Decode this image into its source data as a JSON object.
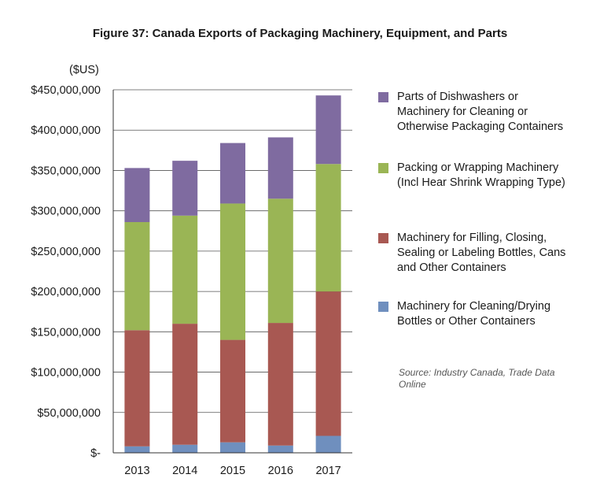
{
  "title": "Figure 37: Canada Exports of Packaging Machinery, Equipment, and Parts",
  "source_note": "Source: Industry Canada, Trade Data Online",
  "chart_data": {
    "type": "bar",
    "stacked": true,
    "title": "Figure 37: Canada Exports of Packaging Machinery, Equipment, and Parts",
    "ylabel": "($US)",
    "xlabel": "",
    "categories": [
      "2013",
      "2014",
      "2015",
      "2016",
      "2017"
    ],
    "ylim": [
      0,
      450000000
    ],
    "yticks": [
      0,
      50000000,
      100000000,
      150000000,
      200000000,
      250000000,
      300000000,
      350000000,
      400000000,
      450000000
    ],
    "ytick_labels": [
      "$-",
      "$50,000,000",
      "$100,000,000",
      "$150,000,000",
      "$200,000,000",
      "$250,000,000",
      "$300,000,000",
      "$350,000,000",
      "$400,000,000",
      "$450,000,000"
    ],
    "grid": true,
    "legend_position": "right",
    "series": [
      {
        "name": "Machinery for Cleaning/Drying Bottles or Other Containers",
        "color": "#6f8fbe",
        "values": [
          8000000,
          10000000,
          13000000,
          9000000,
          21000000
        ]
      },
      {
        "name": "Machinery for Filling, Closing, Sealing or Labeling Bottles, Cans and Other Containers",
        "color": "#a85852",
        "values": [
          144000000,
          150000000,
          127000000,
          152000000,
          179000000
        ]
      },
      {
        "name": "Packing or Wrapping Machinery (Incl Hear Shrink Wrapping Type)",
        "color": "#9ab555",
        "values": [
          134000000,
          134000000,
          169000000,
          154000000,
          158000000
        ]
      },
      {
        "name": "Parts of Dishwashers or Machinery for Cleaning or Otherwise Packaging Containers",
        "color": "#7f6ba0",
        "values": [
          67000000,
          68000000,
          75000000,
          76000000,
          85000000
        ]
      }
    ]
  },
  "legend_text": [
    "Parts of Dishwashers or\nMachinery for Cleaning or\nOtherwise Packaging Containers",
    "Packing or Wrapping Machinery\n(Incl Hear Shrink Wrapping Type)",
    "Machinery for Filling, Closing,\nSealing or Labeling Bottles, Cans\nand Other Containers",
    "Machinery for Cleaning/Drying\nBottles or Other Containers"
  ]
}
